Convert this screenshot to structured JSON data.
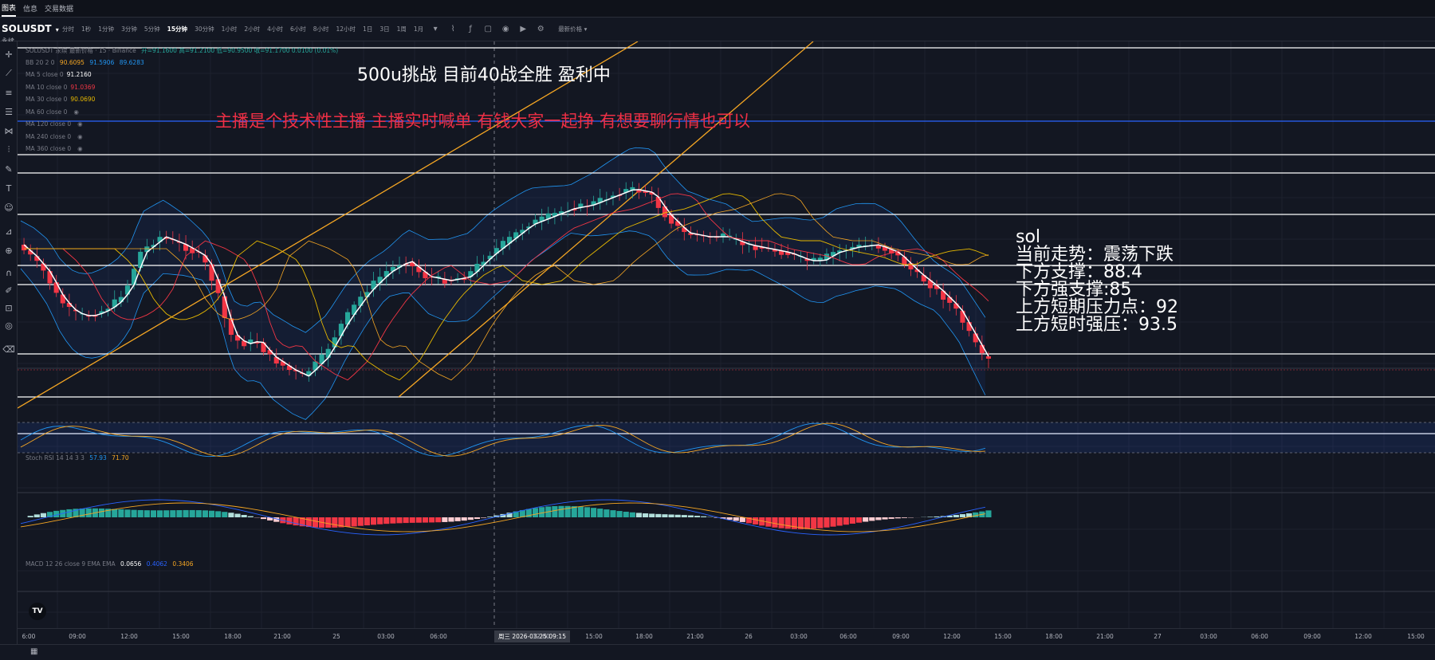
{
  "nav": {
    "tabs": [
      "图表",
      "信息",
      "交易数据"
    ],
    "active": 0
  },
  "toolbar": {
    "symbol": "SOLUSDT",
    "symbol_sub": "永续",
    "timeframes": [
      "分时",
      "1秒",
      "1分钟",
      "3分钟",
      "5分钟",
      "15分钟",
      "30分钟",
      "1小时",
      "2小时",
      "4小时",
      "6小时",
      "8小时",
      "12小时",
      "1日",
      "3日",
      "1周",
      "1月"
    ],
    "active_timeframe": "15分钟",
    "indicator_label": "最新价格"
  },
  "legend": {
    "main": {
      "label": "SOLUSDT 永续 最新价格 · 15 · Binance",
      "ohlc": "开=91.1600 高=91.2100 低=90.9500 收=91.1700 0.0100 (0.01%)"
    },
    "bb": {
      "label": "BB 20 2 0",
      "v1": "90.6095",
      "v2": "91.5906",
      "v3": "89.6283"
    },
    "ma": [
      {
        "label": "MA 5 close 0",
        "value": "91.2160",
        "color": "#ffffff"
      },
      {
        "label": "MA 10 close 0",
        "value": "91.0369",
        "color": "#f23645"
      },
      {
        "label": "MA 30 close 0",
        "value": "90.0690",
        "color": "#e6b800"
      },
      {
        "label": "MA 60 close 0",
        "value": "",
        "color": "#787b86"
      },
      {
        "label": "MA 120 close 0",
        "value": "",
        "color": "#787b86"
      },
      {
        "label": "MA 240 close 0",
        "value": "",
        "color": "#787b86"
      },
      {
        "label": "MA 360 close 0",
        "value": "",
        "color": "#787b86"
      }
    ],
    "stoch": {
      "label": "Stoch RSI 14 14 3 3",
      "k": "57.93",
      "d": "71.70"
    },
    "macd": {
      "label": "MACD 12 26 close 9 EMA EMA",
      "hist": "0.0656",
      "macd": "0.4062",
      "signal": "0.3406"
    }
  },
  "overlay": {
    "title": "500u挑战 目前40战全胜 盈利中",
    "red_text": "主播是个技术性主播 主播实时喊单 有钱大家一起挣 有想要聊行情也可以",
    "analysis": [
      "sol",
      "当前走势：震荡下跌",
      "下方支撑：88.4",
      "下方强支撑:85",
      "上方短期压力点：92",
      "上方短时强压：93.5"
    ]
  },
  "time_axis": {
    "labels": [
      "6:00",
      "09:00",
      "12:00",
      "15:00",
      "18:00",
      "21:00",
      "25",
      "03:00",
      "06:00",
      "12:00",
      "15:00",
      "18:00",
      "21:00",
      "26",
      "03:00",
      "06:00",
      "09:00",
      "12:00",
      "15:00",
      "18:00",
      "21:00",
      "27",
      "03:00",
      "06:00",
      "09:00",
      "12:00",
      "15:00"
    ],
    "crosshair": "周三 2026-03-25  09:15"
  },
  "colors": {
    "up": "#26a69a",
    "down": "#f23645",
    "background": "#131722",
    "trend": "#f5a623",
    "band": "#2962ff"
  }
}
